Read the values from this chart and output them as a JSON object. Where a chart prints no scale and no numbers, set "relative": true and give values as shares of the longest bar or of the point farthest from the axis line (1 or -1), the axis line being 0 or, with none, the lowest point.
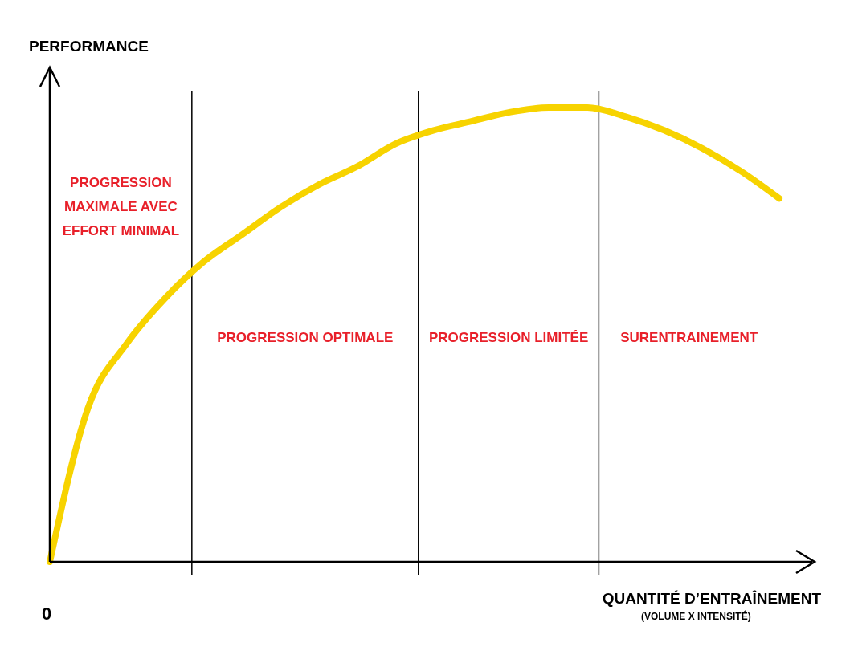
{
  "chart_data": {
    "type": "line",
    "relative": true,
    "ylabel": "PERFORMANCE",
    "xlabel": "QUANTITÉ D’ENTRAÎNEMENT",
    "categories": [
      null,
      null,
      null,
      null,
      null,
      null,
      null,
      null,
      null,
      null,
      null,
      null,
      null,
      null,
      null,
      null,
      null,
      null,
      null,
      null
    ],
    "series": [
      {
        "color": "#f7d300",
        "values": [
          0,
          0.34,
          0.48,
          0.58,
          0.66,
          0.72,
          0.78,
          0.83,
          0.87,
          0.92,
          0.95,
          0.97,
          0.99,
          1,
          1,
          0.98,
          0.95,
          0.91,
          0.86,
          0.8
        ]
      }
    ],
    "annotations": [
      "PROGRESSION\nMAXIMALE AVEC\nEFFORT MINIMAL",
      "PROGRESSION OPTIMALE",
      "PROGRESSION LIMITÉE",
      "SURENTRAINEMENT",
      "0",
      "(VOLUME X INTENSITÉ)"
    ]
  }
}
